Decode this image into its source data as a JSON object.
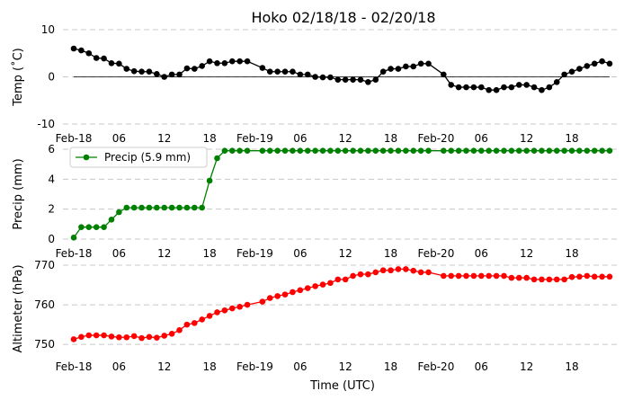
{
  "chart_data": {
    "type": "line",
    "title": "Hoko 02/18/18 - 02/20/18",
    "xlabel": "Time (UTC)",
    "x_tick_labels": [
      "Feb-18",
      "06",
      "12",
      "18",
      "Feb-19",
      "06",
      "12",
      "18",
      "Feb-20",
      "06",
      "12",
      "18"
    ],
    "x_tick_hours": [
      0,
      6,
      12,
      18,
      24,
      30,
      36,
      42,
      48,
      54,
      60,
      66
    ],
    "x_range_hours": [
      0,
      71
    ],
    "grid": "horizontal dashed",
    "panels": [
      {
        "ylabel": "Temp (˚C)",
        "ylim": [
          -10,
          10
        ],
        "yticks": [
          -10,
          0,
          10
        ],
        "zero_line": true,
        "series": [
          {
            "color": "#000000",
            "x": [
              0,
              1,
              2,
              3,
              4,
              5,
              6,
              7,
              8,
              9,
              10,
              11,
              12,
              13,
              14,
              15,
              16,
              17,
              18,
              19,
              20,
              21,
              22,
              23,
              25,
              26,
              27,
              28,
              29,
              30,
              31,
              32,
              33,
              34,
              35,
              36,
              37,
              38,
              39,
              40,
              41,
              42,
              43,
              44,
              45,
              46,
              47,
              49,
              50,
              51,
              52,
              53,
              54,
              55,
              56,
              57,
              58,
              59,
              60,
              61,
              62,
              63,
              64,
              65,
              66,
              67,
              68,
              69,
              70,
              71
            ],
            "y": [
              6.0,
              5.6,
              5.0,
              4.0,
              3.9,
              2.9,
              2.8,
              1.7,
              1.2,
              1.1,
              1.1,
              0.6,
              0.0,
              0.5,
              0.5,
              1.8,
              1.7,
              2.3,
              3.3,
              2.9,
              2.9,
              3.3,
              3.3,
              3.3,
              1.9,
              1.1,
              1.1,
              1.1,
              1.1,
              0.5,
              0.5,
              0.0,
              -0.1,
              -0.1,
              -0.6,
              -0.6,
              -0.6,
              -0.6,
              -1.1,
              -0.6,
              1.1,
              1.7,
              1.7,
              2.2,
              2.2,
              2.8,
              2.8,
              0.5,
              -1.7,
              -2.2,
              -2.2,
              -2.2,
              -2.2,
              -2.8,
              -2.8,
              -2.2,
              -2.2,
              -1.7,
              -1.7,
              -2.2,
              -2.8,
              -2.2,
              -1.1,
              0.5,
              1.1,
              1.7,
              2.3,
              2.8,
              3.3,
              2.8
            ]
          }
        ]
      },
      {
        "ylabel": "Precip (mm)",
        "ylim": [
          0,
          6
        ],
        "yticks": [
          0,
          2,
          4,
          6
        ],
        "legend": {
          "label": "Precip (5.9 mm)",
          "placement": "top-left"
        },
        "series": [
          {
            "name": "Precip (5.9 mm)",
            "color": "#008000",
            "x": [
              0,
              1,
              2,
              3,
              4,
              5,
              6,
              7,
              8,
              9,
              10,
              11,
              12,
              13,
              14,
              15,
              16,
              17,
              18,
              19,
              20,
              21,
              22,
              23,
              25,
              26,
              27,
              28,
              29,
              30,
              31,
              32,
              33,
              34,
              35,
              36,
              37,
              38,
              39,
              40,
              41,
              42,
              43,
              44,
              45,
              46,
              47,
              49,
              50,
              51,
              52,
              53,
              54,
              55,
              56,
              57,
              58,
              59,
              60,
              61,
              62,
              63,
              64,
              65,
              66,
              67,
              68,
              69,
              70,
              71
            ],
            "y": [
              0.1,
              0.8,
              0.8,
              0.8,
              0.8,
              1.3,
              1.8,
              2.1,
              2.1,
              2.1,
              2.1,
              2.1,
              2.1,
              2.1,
              2.1,
              2.1,
              2.1,
              2.1,
              3.9,
              5.4,
              5.9,
              5.9,
              5.9,
              5.9,
              5.9,
              5.9,
              5.9,
              5.9,
              5.9,
              5.9,
              5.9,
              5.9,
              5.9,
              5.9,
              5.9,
              5.9,
              5.9,
              5.9,
              5.9,
              5.9,
              5.9,
              5.9,
              5.9,
              5.9,
              5.9,
              5.9,
              5.9,
              5.9,
              5.9,
              5.9,
              5.9,
              5.9,
              5.9,
              5.9,
              5.9,
              5.9,
              5.9,
              5.9,
              5.9,
              5.9,
              5.9,
              5.9,
              5.9,
              5.9,
              5.9,
              5.9,
              5.9,
              5.9,
              5.9,
              5.9
            ]
          }
        ]
      },
      {
        "ylabel": "Altimeter (hPa)",
        "ylim": [
          748,
          770
        ],
        "yticks": [
          750,
          760,
          770
        ],
        "series": [
          {
            "color": "#ff0000",
            "x": [
              0,
              1,
              2,
              3,
              4,
              5,
              6,
              7,
              8,
              9,
              10,
              11,
              12,
              13,
              14,
              15,
              16,
              17,
              18,
              19,
              20,
              21,
              22,
              23,
              25,
              26,
              27,
              28,
              29,
              30,
              31,
              32,
              33,
              34,
              35,
              36,
              37,
              38,
              39,
              40,
              41,
              42,
              43,
              44,
              45,
              46,
              47,
              49,
              50,
              51,
              52,
              53,
              54,
              55,
              56,
              57,
              58,
              59,
              60,
              61,
              62,
              63,
              64,
              65,
              66,
              67,
              68,
              69,
              70,
              71
            ],
            "y": [
              751.3,
              751.9,
              752.3,
              752.3,
              752.3,
              752.0,
              751.8,
              751.8,
              752.1,
              751.6,
              751.9,
              751.7,
              752.2,
              752.7,
              753.6,
              755.0,
              755.4,
              756.3,
              757.2,
              758.1,
              758.6,
              759.1,
              759.5,
              760.0,
              760.8,
              761.7,
              762.2,
              762.6,
              763.2,
              763.7,
              764.2,
              764.7,
              765.1,
              765.5,
              766.4,
              766.4,
              767.3,
              767.7,
              767.7,
              768.2,
              768.7,
              768.7,
              769.0,
              769.0,
              768.6,
              768.2,
              768.2,
              767.3,
              767.3,
              767.3,
              767.3,
              767.3,
              767.3,
              767.3,
              767.3,
              767.3,
              766.8,
              766.8,
              766.8,
              766.4,
              766.4,
              766.4,
              766.4,
              766.4,
              767.0,
              767.1,
              767.3,
              767.1,
              767.1,
              767.1
            ]
          }
        ]
      }
    ]
  }
}
